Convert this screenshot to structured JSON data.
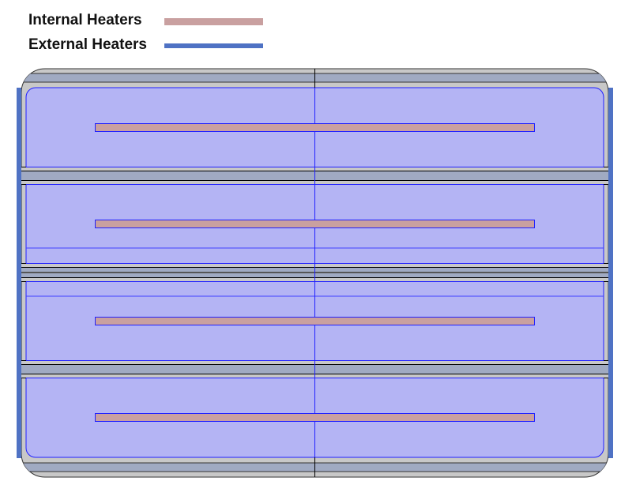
{
  "legend": [
    {
      "label": "Internal Heaters",
      "color": "#c9a0a0"
    },
    {
      "label": "External Heaters",
      "color": "#4f72c4"
    }
  ],
  "colors": {
    "frame": "#c8c8c8",
    "band": "#a0aac2",
    "cell": "#b4b4f4",
    "cell_line": "#2020ff",
    "internal_heater": "#c9a0a0",
    "external_heater": "#4f72c4"
  },
  "internal_heater_count": 4
}
